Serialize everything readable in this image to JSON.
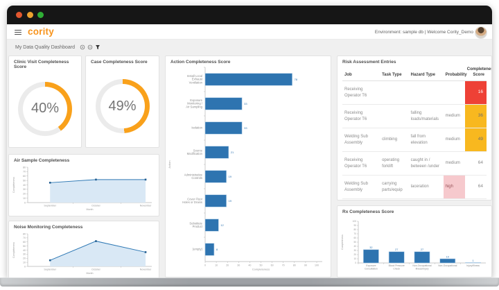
{
  "window": {
    "traffic_lights": [
      {
        "name": "close",
        "color": "#e2572f"
      },
      {
        "name": "minimize",
        "color": "#eda12f"
      },
      {
        "name": "zoom",
        "color": "#2fae35"
      }
    ]
  },
  "header": {
    "logo_text": "cority",
    "logo_color": "#f7941e",
    "environment_text": "Environment: sample db | Welcome Cority_Demo"
  },
  "toolbar": {
    "title": "My Data Quality Dashboard",
    "icons": [
      "refresh-icon",
      "collapse-icon",
      "filter-icon"
    ]
  },
  "panels": {
    "clinic_visit": {
      "title": "Clinic Visit Completeness Score"
    },
    "case": {
      "title": "Case Completeness Score"
    },
    "air_sample": {
      "title": "Air Sample Completeness"
    },
    "noise": {
      "title": "Noise Monitoring Completeness"
    },
    "action": {
      "title": "Action Completeness Score"
    },
    "risk": {
      "title": "Risk Assessment Entries"
    },
    "rx": {
      "title": "Rx Completeness Score"
    }
  },
  "chart_data": {
    "clinic_visit": {
      "type": "donut",
      "title": "Clinic Visit Completeness Score",
      "value": 40,
      "display": "40%",
      "color": "#f9a11b",
      "track": "#ebebeb"
    },
    "case": {
      "type": "donut",
      "title": "Case Completeness Score",
      "value": 49,
      "display": "49%",
      "color": "#f9a11b",
      "track": "#ebebeb"
    },
    "air_sample": {
      "type": "area",
      "title": "Air Sample Completeness",
      "categories": [
        "September",
        "October",
        "November"
      ],
      "values": [
        45,
        52,
        52
      ],
      "xlabel": "Month",
      "ylabel": "Completeness",
      "ylim": [
        0,
        80
      ],
      "ytick": 10,
      "line_color": "#2e78b4",
      "fill_color": "#d9e8f5",
      "marker_color": "#235e91"
    },
    "noise": {
      "type": "area",
      "title": "Noise Monitoring Completeness",
      "categories": [
        "September",
        "October",
        "November"
      ],
      "values": [
        15,
        62,
        35
      ],
      "xlabel": "Month",
      "ylabel": "Completeness",
      "ylim": [
        0,
        80
      ],
      "ytick": 10,
      "line_color": "#2e78b4",
      "fill_color": "#d9e8f5",
      "marker_color": "#235e91"
    },
    "action": {
      "type": "hbar",
      "title": "Action Completeness Score",
      "categories": [
        "Install Local Exhaust Ventilation",
        "Exposure Monitoring / Air Sampling",
        "Isolation",
        "Source Modification",
        "Administrative Controls",
        "Cover Floor Holes or Drains",
        "Substitute Product",
        "(empty)"
      ],
      "category_lines": [
        [
          "Install Local",
          "Exhaust",
          "Ventilation"
        ],
        [
          "Exposure",
          "Monitoring /",
          "Air Sampling"
        ],
        [
          "Isolation"
        ],
        [
          "Source",
          "Modification"
        ],
        [
          "Administrative",
          "Controls"
        ],
        [
          "Cover Floor",
          "Holes or Drains"
        ],
        [
          "Substitute",
          "Product"
        ],
        [
          "(empty)"
        ]
      ],
      "values": [
        78,
        33,
        33,
        21,
        19,
        19,
        12,
        8
      ],
      "xlabel": "Completeness",
      "ylabel": "Action",
      "xlim": [
        0,
        100
      ],
      "xtick": 10,
      "bar_color": "#2e74b0"
    },
    "rx": {
      "type": "vbar",
      "title": "Rx Completeness Score",
      "categories": [
        "Exposure Consultation",
        "Blood Pressure Check",
        "Non-Occupational Illness/Injury",
        "Non-Occupational",
        "Injury/Illness"
      ],
      "category_lines": [
        [
          "Exposure",
          "Consultation"
        ],
        [
          "Blood Pressure",
          "Check"
        ],
        [
          "Non-Occupational",
          "Illness/Injury"
        ],
        [
          "Non-Occupational"
        ],
        [
          "Injury/Illness"
        ]
      ],
      "values": [
        32,
        27,
        27,
        10,
        1
      ],
      "ylabel": "Completeness",
      "ylim": [
        0,
        100
      ],
      "ytick": 10,
      "bar_color": "#2e74b0"
    },
    "risk": {
      "type": "table",
      "title": "Risk Assessment Entries",
      "columns": [
        "Job",
        "Task Type",
        "Hazard Type",
        "Probability",
        "Completeness Score"
      ],
      "rows": [
        {
          "job": "Receiving Operator T6",
          "task": "",
          "hazard": "",
          "probability": "",
          "score": "16",
          "score_bg": "#ee4136",
          "score_color": "#ffffff"
        },
        {
          "job": "Receiving Operator T6",
          "task": "",
          "hazard": "falling loads/materials",
          "probability": "medium",
          "score": "36",
          "score_bg": "#f8b81f",
          "score_color": "#6e6e6e"
        },
        {
          "job": "Welding Sub Assembly",
          "task": "climbing",
          "hazard": "fall from elevation",
          "probability": "medium",
          "score": "49",
          "score_bg": "#f8b81f",
          "score_color": "#6e6e6e"
        },
        {
          "job": "Receiving Operator T6",
          "task": "operating forklift",
          "hazard": "caught in / between /under",
          "probability": "medium",
          "score": "64",
          "score_bg": "",
          "score_color": "#8a8a8a"
        },
        {
          "job": "Welding Sub Assembly",
          "task": "carrying parts/equip",
          "hazard": "laceration",
          "probability": "high",
          "probability_bg": "#f6c9cd",
          "probability_color": "#99555b",
          "score": "64",
          "score_bg": "",
          "score_color": "#8a8a8a"
        }
      ]
    }
  }
}
